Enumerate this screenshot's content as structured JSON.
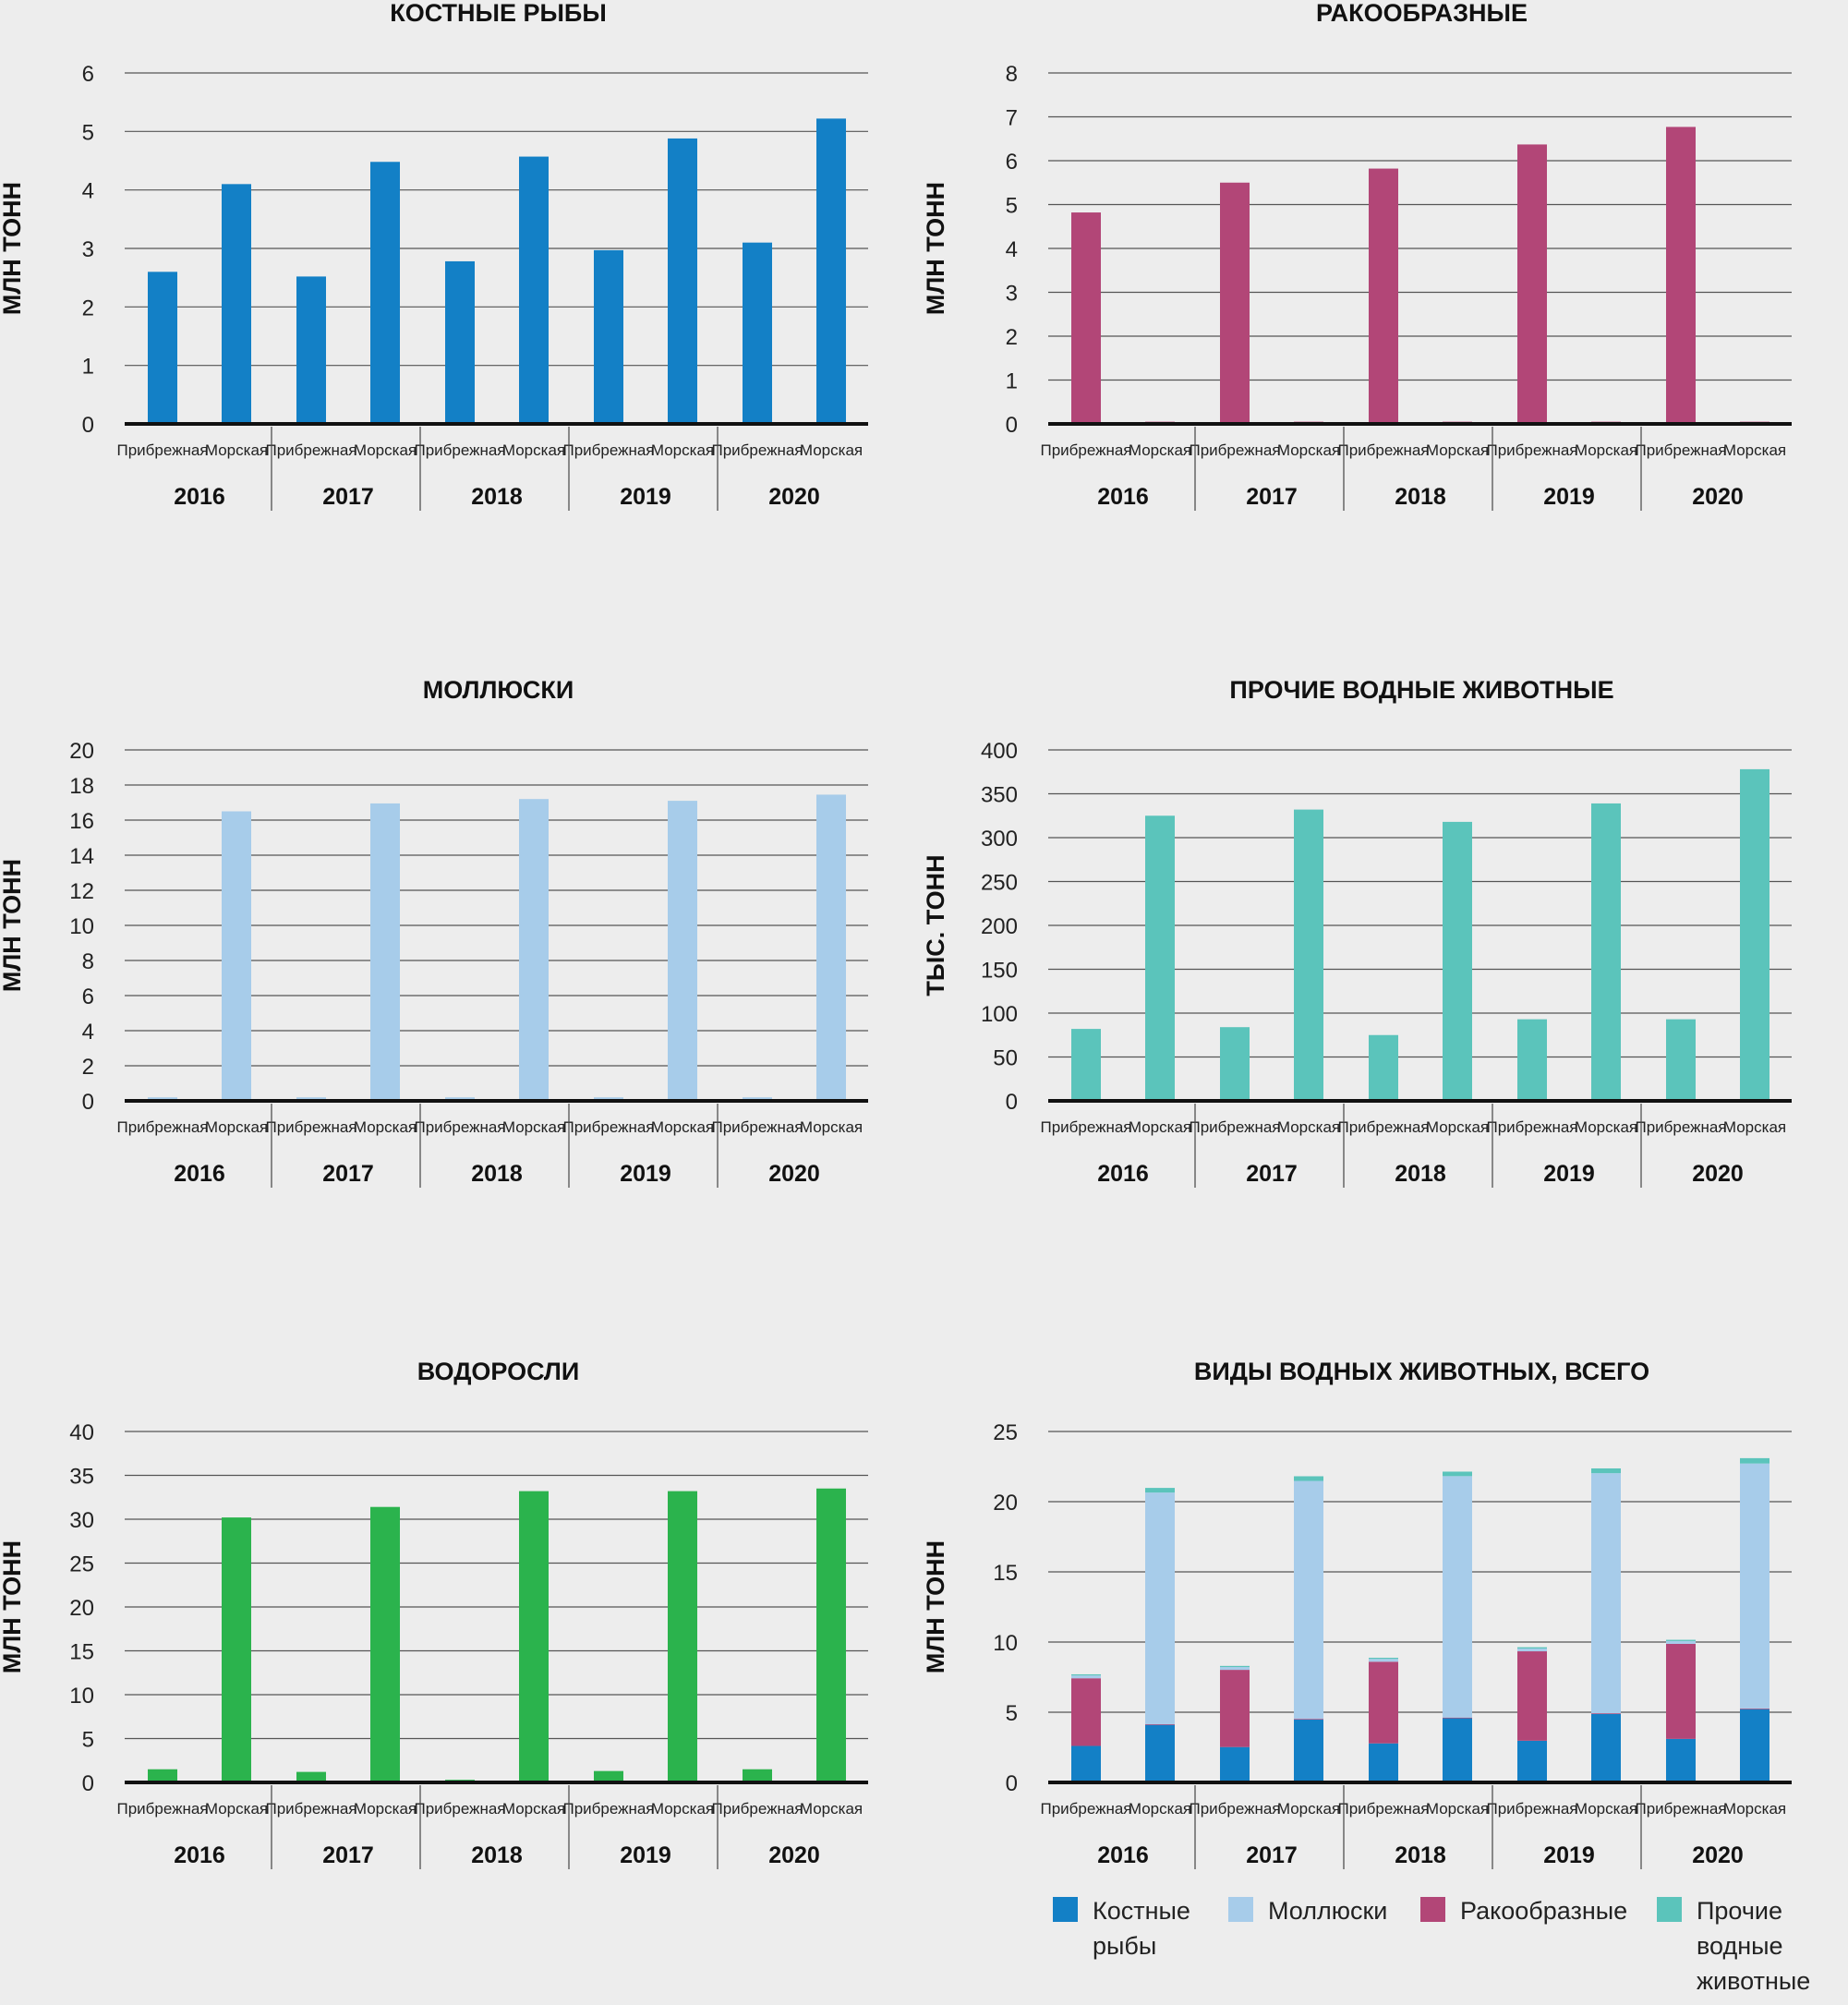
{
  "colors": {
    "bony_fish": "#1380c6",
    "crustaceans": "#b24677",
    "molluscs": "#a7ccea",
    "other_aquatic": "#5bc4bb",
    "algae": "#2bb34d"
  },
  "legend": {
    "bony_fish": "Костные рыбы",
    "molluscs": "Моллюски",
    "crustaceans": "Ракообразные",
    "other_aquatic": "Прочие водные животные"
  },
  "chart_data": [
    {
      "id": "fish",
      "type": "bar",
      "title": "КОСТНЫЕ РЫБЫ",
      "ylabel": "МЛН ТОНН",
      "ylim": [
        0,
        6
      ],
      "yticks": [
        0,
        1,
        2,
        3,
        4,
        5,
        6
      ],
      "years": [
        "2016",
        "2017",
        "2018",
        "2019",
        "2020"
      ],
      "subcategories": [
        "Прибрежная",
        "Морская"
      ],
      "color_key": "bony_fish",
      "values": [
        [
          2.6,
          4.1
        ],
        [
          2.52,
          4.48
        ],
        [
          2.78,
          4.57
        ],
        [
          2.97,
          4.88
        ],
        [
          3.1,
          5.22
        ]
      ]
    },
    {
      "id": "crust",
      "type": "bar",
      "title": "РАКООБРАЗНЫЕ",
      "ylabel": "МЛН ТОНН",
      "ylim": [
        0,
        8
      ],
      "yticks": [
        0,
        1,
        2,
        3,
        4,
        5,
        6,
        7,
        8
      ],
      "years": [
        "2016",
        "2017",
        "2018",
        "2019",
        "2020"
      ],
      "subcategories": [
        "Прибрежная",
        "Морская"
      ],
      "color_key": "crustaceans",
      "values": [
        [
          4.82,
          0.05
        ],
        [
          5.5,
          0.05
        ],
        [
          5.82,
          0.05
        ],
        [
          6.37,
          0.05
        ],
        [
          6.77,
          0.05
        ]
      ]
    },
    {
      "id": "moll",
      "type": "bar",
      "title": "МОЛЛЮСКИ",
      "ylabel": "МЛН ТОНН",
      "ylim": [
        0,
        20
      ],
      "yticks": [
        0,
        2,
        4,
        6,
        8,
        10,
        12,
        14,
        16,
        18,
        20
      ],
      "years": [
        "2016",
        "2017",
        "2018",
        "2019",
        "2020"
      ],
      "subcategories": [
        "Прибрежная",
        "Морская"
      ],
      "color_key": "molluscs",
      "values": [
        [
          0.2,
          16.5
        ],
        [
          0.2,
          16.95
        ],
        [
          0.2,
          17.2
        ],
        [
          0.2,
          17.1
        ],
        [
          0.2,
          17.45
        ]
      ]
    },
    {
      "id": "other",
      "type": "bar",
      "title": "ПРОЧИЕ ВОДНЫЕ ЖИВОТНЫЕ",
      "ylabel": "ТЫС. ТОНН",
      "ylim": [
        0,
        400
      ],
      "yticks": [
        0,
        50,
        100,
        150,
        200,
        250,
        300,
        350,
        400
      ],
      "years": [
        "2016",
        "2017",
        "2018",
        "2019",
        "2020"
      ],
      "subcategories": [
        "Прибрежная",
        "Морская"
      ],
      "color_key": "other_aquatic",
      "values": [
        [
          82,
          325
        ],
        [
          84,
          332
        ],
        [
          75,
          318
        ],
        [
          93,
          339
        ],
        [
          93,
          378
        ]
      ]
    },
    {
      "id": "algae",
      "type": "bar",
      "title": "ВОДОРОСЛИ",
      "ylabel": "МЛН ТОНН",
      "ylim": [
        0,
        40
      ],
      "yticks": [
        0,
        5,
        10,
        15,
        20,
        25,
        30,
        35,
        40
      ],
      "years": [
        "2016",
        "2017",
        "2018",
        "2019",
        "2020"
      ],
      "subcategories": [
        "Прибрежная",
        "Морская"
      ],
      "color_key": "algae",
      "values": [
        [
          1.5,
          30.2
        ],
        [
          1.2,
          31.4
        ],
        [
          0.3,
          33.2
        ],
        [
          1.3,
          33.2
        ],
        [
          1.5,
          33.5
        ]
      ]
    },
    {
      "id": "total",
      "type": "bar",
      "stacked": true,
      "title": "ВИДЫ ВОДНЫХ ЖИВОТНЫХ, ВСЕГО",
      "ylabel": "МЛН ТОНН",
      "ylim": [
        0,
        25
      ],
      "yticks": [
        0,
        5,
        10,
        15,
        20,
        25
      ],
      "years": [
        "2016",
        "2017",
        "2018",
        "2019",
        "2020"
      ],
      "subcategories": [
        "Прибрежная",
        "Морская"
      ],
      "series": [
        {
          "name": "Костные рыбы",
          "color_key": "bony_fish",
          "values": [
            [
              2.6,
              4.1
            ],
            [
              2.52,
              4.48
            ],
            [
              2.78,
              4.57
            ],
            [
              2.97,
              4.88
            ],
            [
              3.1,
              5.22
            ]
          ]
        },
        {
          "name": "Ракообразные",
          "color_key": "crustaceans",
          "values": [
            [
              4.82,
              0.05
            ],
            [
              5.5,
              0.05
            ],
            [
              5.82,
              0.05
            ],
            [
              6.37,
              0.05
            ],
            [
              6.77,
              0.05
            ]
          ]
        },
        {
          "name": "Моллюски",
          "color_key": "molluscs",
          "values": [
            [
              0.2,
              16.5
            ],
            [
              0.2,
              16.95
            ],
            [
              0.2,
              17.2
            ],
            [
              0.2,
              17.1
            ],
            [
              0.2,
              17.45
            ]
          ]
        },
        {
          "name": "Прочие водные животные",
          "color_key": "other_aquatic",
          "values": [
            [
              0.08,
              0.33
            ],
            [
              0.08,
              0.33
            ],
            [
              0.08,
              0.32
            ],
            [
              0.09,
              0.34
            ],
            [
              0.09,
              0.38
            ]
          ]
        }
      ]
    }
  ]
}
